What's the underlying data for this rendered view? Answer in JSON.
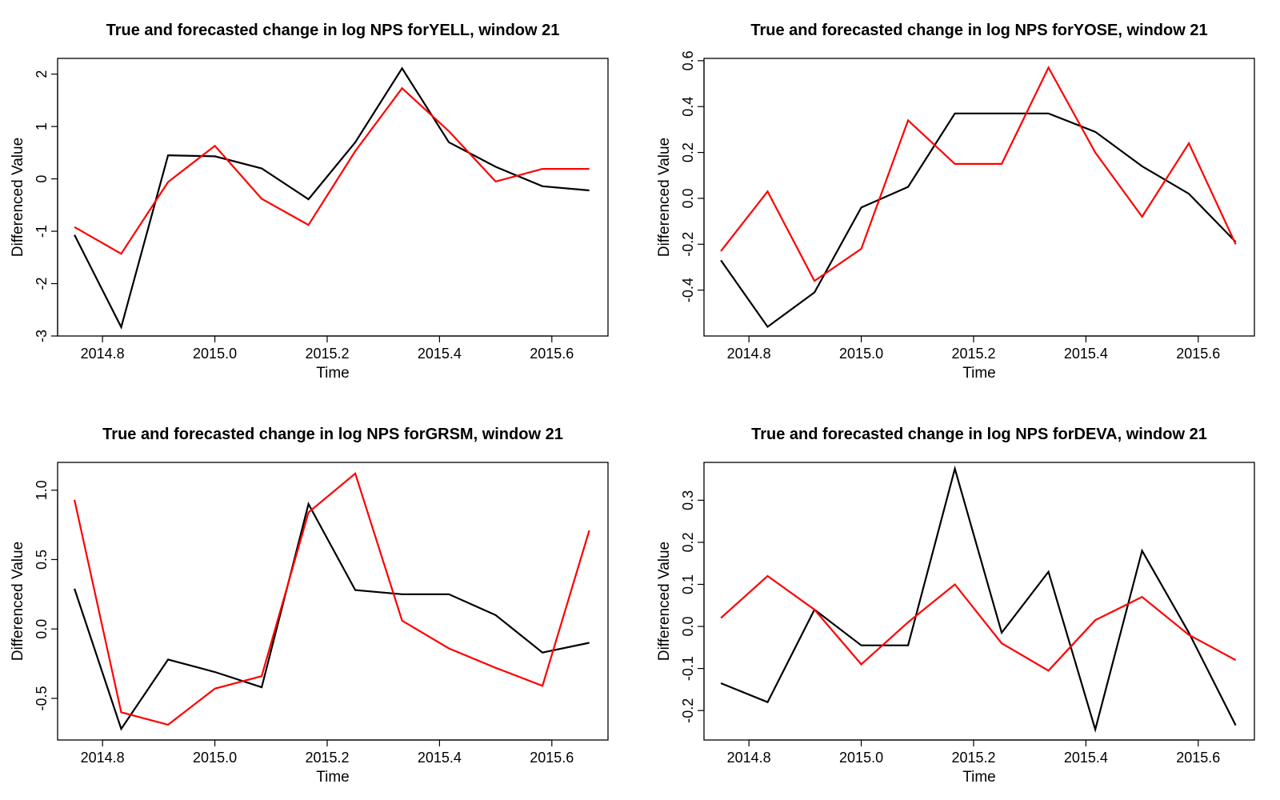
{
  "chart_data": [
    {
      "type": "line",
      "title": "True and forecasted change in log NPS forYELL, window 21",
      "xlabel": "Time",
      "ylabel": "Differenced Value",
      "x": [
        2014.75,
        2014.8333,
        2014.9167,
        2015.0,
        2015.0833,
        2015.1667,
        2015.25,
        2015.3333,
        2015.4167,
        2015.5,
        2015.5833,
        2015.6667
      ],
      "xlim": [
        2014.72,
        2015.7
      ],
      "xticks": [
        "2014.8",
        "2015.0",
        "2015.2",
        "2015.4",
        "2015.6"
      ],
      "ylim": [
        -3.0,
        2.3
      ],
      "yticks": [
        "-3",
        "-2",
        "-1",
        "0",
        "1",
        "2"
      ],
      "grid": false,
      "series": [
        {
          "color": "#000000",
          "values": [
            -1.07,
            -2.83,
            0.45,
            0.43,
            0.2,
            -0.39,
            0.7,
            2.11,
            0.7,
            0.23,
            -0.14,
            -0.22
          ]
        },
        {
          "color": "#ff0000",
          "values": [
            -0.92,
            -1.43,
            -0.06,
            0.63,
            -0.38,
            -0.88,
            0.53,
            1.73,
            0.91,
            -0.05,
            0.19,
            0.19
          ]
        }
      ]
    },
    {
      "type": "line",
      "title": "True and forecasted change in log NPS forYOSE, window 21",
      "xlabel": "Time",
      "ylabel": "Differenced Value",
      "x": [
        2014.75,
        2014.8333,
        2014.9167,
        2015.0,
        2015.0833,
        2015.1667,
        2015.25,
        2015.3333,
        2015.4167,
        2015.5,
        2015.5833,
        2015.6667
      ],
      "xlim": [
        2014.72,
        2015.7
      ],
      "xticks": [
        "2014.8",
        "2015.0",
        "2015.2",
        "2015.4",
        "2015.6"
      ],
      "ylim": [
        -0.6,
        0.61
      ],
      "yticks": [
        "-0.4",
        "-0.2",
        "0.0",
        "0.2",
        "0.4",
        "0.6"
      ],
      "grid": false,
      "series": [
        {
          "color": "#000000",
          "values": [
            -0.27,
            -0.56,
            -0.41,
            -0.04,
            0.05,
            0.37,
            0.37,
            0.37,
            0.29,
            0.14,
            0.02,
            -0.19
          ]
        },
        {
          "color": "#ff0000",
          "values": [
            -0.23,
            0.03,
            -0.36,
            -0.22,
            0.34,
            0.15,
            0.15,
            0.57,
            0.2,
            -0.08,
            0.24,
            -0.2
          ]
        }
      ]
    },
    {
      "type": "line",
      "title": "True and forecasted change in log NPS forGRSM, window 21",
      "xlabel": "Time",
      "ylabel": "Differenced Value",
      "x": [
        2014.75,
        2014.8333,
        2014.9167,
        2015.0,
        2015.0833,
        2015.1667,
        2015.25,
        2015.3333,
        2015.4167,
        2015.5,
        2015.5833,
        2015.6667
      ],
      "xlim": [
        2014.72,
        2015.7
      ],
      "xticks": [
        "2014.8",
        "2015.0",
        "2015.2",
        "2015.4",
        "2015.6"
      ],
      "ylim": [
        -0.8,
        1.2
      ],
      "yticks": [
        "-0.5",
        "0.0",
        "0.5",
        "1.0"
      ],
      "grid": false,
      "series": [
        {
          "color": "#000000",
          "values": [
            0.29,
            -0.72,
            -0.22,
            -0.31,
            -0.42,
            0.9,
            0.28,
            0.25,
            0.25,
            0.1,
            -0.17,
            -0.1
          ]
        },
        {
          "color": "#ff0000",
          "values": [
            0.93,
            -0.6,
            -0.69,
            -0.43,
            -0.34,
            0.84,
            1.12,
            0.06,
            -0.14,
            -0.28,
            -0.41,
            0.71
          ]
        }
      ]
    },
    {
      "type": "line",
      "title": "True and forecasted change in log NPS forDEVA, window 21",
      "xlabel": "Time",
      "ylabel": "Differenced Value",
      "x": [
        2014.75,
        2014.8333,
        2014.9167,
        2015.0,
        2015.0833,
        2015.1667,
        2015.25,
        2015.3333,
        2015.4167,
        2015.5,
        2015.5833,
        2015.6667
      ],
      "xlim": [
        2014.72,
        2015.7
      ],
      "xticks": [
        "2014.8",
        "2015.0",
        "2015.2",
        "2015.4",
        "2015.6"
      ],
      "ylim": [
        -0.27,
        0.39
      ],
      "yticks": [
        "-0.2",
        "-0.1",
        "0.0",
        "0.1",
        "0.2",
        "0.3"
      ],
      "grid": false,
      "series": [
        {
          "color": "#000000",
          "values": [
            -0.135,
            -0.18,
            0.04,
            -0.045,
            -0.045,
            0.375,
            -0.015,
            0.13,
            -0.245,
            0.18,
            -0.015,
            -0.235
          ]
        },
        {
          "color": "#ff0000",
          "values": [
            0.02,
            0.12,
            0.04,
            -0.09,
            0.01,
            0.1,
            -0.04,
            -0.105,
            0.015,
            0.07,
            -0.02,
            -0.08
          ]
        }
      ]
    }
  ]
}
